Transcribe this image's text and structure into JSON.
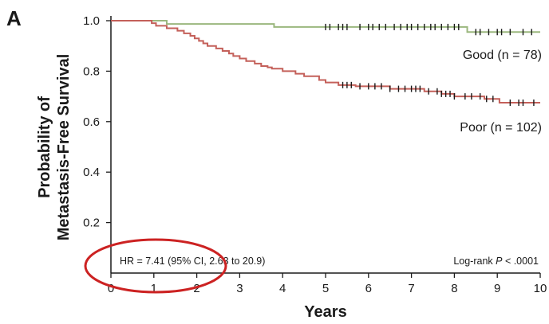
{
  "chart_data": {
    "type": "line",
    "panel_label": "A",
    "xlabel": "Years",
    "ylabel_lines": [
      "Probability of",
      "Metastasis-Free Survival"
    ],
    "xlim": [
      0,
      10
    ],
    "ylim": [
      0,
      1.0
    ],
    "x_ticks": [
      0,
      1,
      2,
      3,
      4,
      5,
      6,
      7,
      8,
      9,
      10
    ],
    "x_tick_labels": [
      "0",
      "1",
      "2",
      "3",
      "4",
      "5",
      "6",
      "7",
      "8",
      "9",
      "10"
    ],
    "y_ticks": [
      0.2,
      0.4,
      0.6,
      0.8,
      1.0
    ],
    "y_tick_labels": [
      "0.2",
      "0.4",
      "0.6",
      "0.8",
      "1.0"
    ],
    "grid": false,
    "annotations": {
      "hr": "HR = 7.41 (95% CI, 2.63 to 20.9)",
      "logrank_prefix": "Log-rank ",
      "logrank_p": "P",
      "logrank_suffix": " < .0001"
    },
    "highlight_color": "#cc2222",
    "series": [
      {
        "name": "Good (n = 78)",
        "color": "#9bb77e",
        "steps": [
          [
            0,
            1.0
          ],
          [
            1.3,
            0.987
          ],
          [
            3.8,
            0.975
          ],
          [
            8.3,
            0.955
          ],
          [
            10.0,
            0.955
          ]
        ],
        "censored": [
          5.0,
          5.1,
          5.3,
          5.4,
          5.5,
          5.8,
          6.0,
          6.1,
          6.25,
          6.4,
          6.6,
          6.75,
          6.9,
          7.0,
          7.15,
          7.3,
          7.45,
          7.55,
          7.7,
          7.85,
          8.0,
          8.1,
          8.5,
          8.6,
          8.8,
          9.0,
          9.1,
          9.3,
          9.6,
          9.8
        ]
      },
      {
        "name": "Poor (n = 102)",
        "color": "#c4605a",
        "steps": [
          [
            0,
            1.0
          ],
          [
            0.95,
            0.99
          ],
          [
            1.05,
            0.98
          ],
          [
            1.3,
            0.97
          ],
          [
            1.55,
            0.96
          ],
          [
            1.7,
            0.95
          ],
          [
            1.85,
            0.94
          ],
          [
            1.95,
            0.93
          ],
          [
            2.05,
            0.92
          ],
          [
            2.15,
            0.91
          ],
          [
            2.25,
            0.9
          ],
          [
            2.45,
            0.89
          ],
          [
            2.6,
            0.88
          ],
          [
            2.75,
            0.87
          ],
          [
            2.85,
            0.86
          ],
          [
            3.0,
            0.85
          ],
          [
            3.15,
            0.84
          ],
          [
            3.35,
            0.83
          ],
          [
            3.5,
            0.82
          ],
          [
            3.65,
            0.815
          ],
          [
            3.75,
            0.81
          ],
          [
            4.0,
            0.8
          ],
          [
            4.3,
            0.79
          ],
          [
            4.5,
            0.78
          ],
          [
            4.85,
            0.765
          ],
          [
            5.0,
            0.755
          ],
          [
            5.3,
            0.745
          ],
          [
            5.7,
            0.74
          ],
          [
            6.5,
            0.73
          ],
          [
            7.3,
            0.72
          ],
          [
            7.7,
            0.71
          ],
          [
            8.0,
            0.7
          ],
          [
            8.7,
            0.69
          ],
          [
            9.05,
            0.675
          ],
          [
            10.0,
            0.675
          ]
        ],
        "censored": [
          5.4,
          5.5,
          5.6,
          5.8,
          6.0,
          6.15,
          6.3,
          6.5,
          6.7,
          6.85,
          7.0,
          7.1,
          7.2,
          7.4,
          7.6,
          7.7,
          7.8,
          7.9,
          8.0,
          8.25,
          8.4,
          8.6,
          8.75,
          8.9,
          9.3,
          9.5,
          9.6,
          9.85
        ]
      }
    ]
  }
}
